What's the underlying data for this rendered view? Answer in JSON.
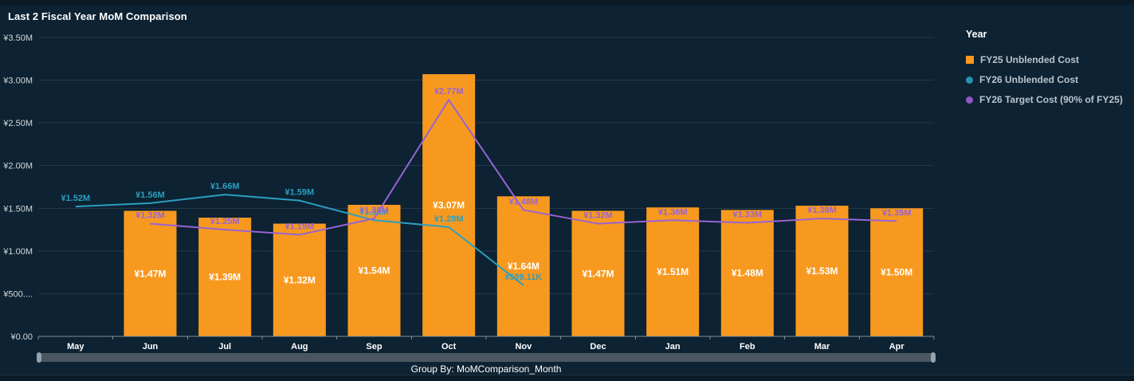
{
  "title": "Last 2 Fiscal Year MoM Comparison",
  "colors": {
    "background": "#0d2232",
    "bar_orange": "#f8991f",
    "line_teal": "#2b9fc0",
    "line_purple": "#9763d2",
    "bar_value_label": "#ffffff"
  },
  "legend": {
    "title": "Year",
    "items": [
      {
        "label": "FY25 Unblended Cost",
        "color": "#f8991f",
        "marker": "square"
      },
      {
        "label": "FY26 Unblended Cost",
        "color": "#2e8fae",
        "marker": "circle"
      },
      {
        "label": "FY26 Target Cost (90% of FY25)",
        "color": "#8e59c0",
        "marker": "circle"
      }
    ]
  },
  "footer": {
    "group_by_label": "Group By: MoMComparison_Month"
  },
  "chart_data": {
    "type": "bar",
    "subtype": "bar-with-lines-combo",
    "categories": [
      "May",
      "Jun",
      "Jul",
      "Aug",
      "Sep",
      "Oct",
      "Nov",
      "Dec",
      "Jan",
      "Feb",
      "Mar",
      "Apr"
    ],
    "ylim": [
      0,
      3500000
    ],
    "y_ticks": [
      {
        "value": 3500000,
        "label": "¥3.50M"
      },
      {
        "value": 3000000,
        "label": "¥3.00M"
      },
      {
        "value": 2500000,
        "label": "¥2.50M"
      },
      {
        "value": 2000000,
        "label": "¥2.00M"
      },
      {
        "value": 1500000,
        "label": "¥1.50M"
      },
      {
        "value": 1000000,
        "label": "¥1.00M"
      },
      {
        "value": 500000,
        "label": "¥500...."
      },
      {
        "value": 0,
        "label": "¥0.00"
      }
    ],
    "grid": true,
    "legend_position": "right",
    "series": [
      {
        "name": "FY25 Unblended Cost",
        "type": "bar",
        "color": "#f8991f",
        "values": [
          null,
          1470000,
          1390000,
          1320000,
          1540000,
          3070000,
          1640000,
          1470000,
          1510000,
          1480000,
          1530000,
          1500000
        ],
        "labels": [
          null,
          "¥1.47M",
          "¥1.39M",
          "¥1.32M",
          "¥1.54M",
          "¥3.07M",
          "¥1.64M",
          "¥1.47M",
          "¥1.51M",
          "¥1.48M",
          "¥1.53M",
          "¥1.50M"
        ]
      },
      {
        "name": "FY26 Unblended Cost",
        "type": "line",
        "color": "#2b9fc0",
        "values": [
          1520000,
          1560000,
          1660000,
          1590000,
          1360000,
          1280000,
          599110,
          null,
          null,
          null,
          null,
          null
        ],
        "labels": [
          "¥1.52M",
          "¥1.56M",
          "¥1.66M",
          "¥1.59M",
          "¥1.36M",
          "¥1.28M",
          "¥599.11K",
          null,
          null,
          null,
          null,
          null
        ]
      },
      {
        "name": "FY26 Target Cost (90% of FY25)",
        "type": "line",
        "color": "#9763d2",
        "values": [
          null,
          1320000,
          1250000,
          1190000,
          1380000,
          2770000,
          1480000,
          1320000,
          1360000,
          1330000,
          1380000,
          1350000
        ],
        "labels": [
          null,
          "¥1.32M",
          "¥1.25M",
          "¥1.19M",
          "¥1.38M",
          "¥2.77M",
          "¥1.48M",
          "¥1.32M",
          "¥1.36M",
          "¥1.33M",
          "¥1.38M",
          "¥1.35M"
        ]
      }
    ]
  }
}
